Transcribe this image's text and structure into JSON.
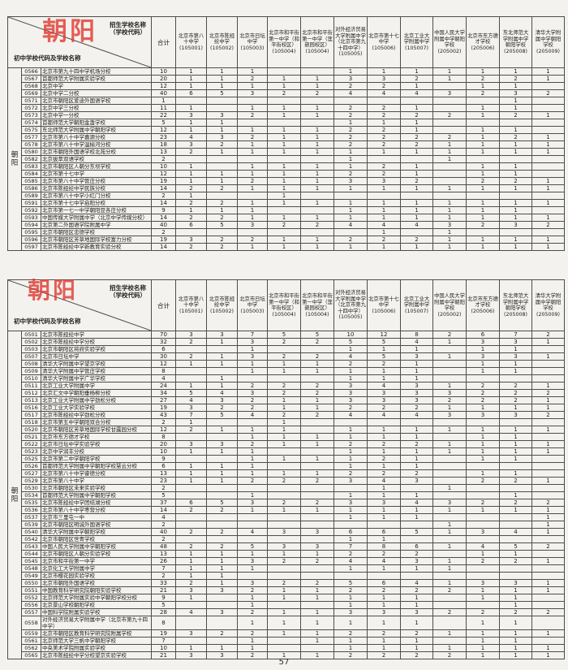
{
  "stamp_text": "朝阳",
  "side_label": "朝阳",
  "page_number": "57",
  "header": {
    "corner_top_line1": "招生学校名称",
    "corner_top_line2": "（学校代码）",
    "corner_bottom": "初中学校代码及学校名称",
    "total_label": "合计",
    "columns": [
      {
        "name": "北京市第八十中学",
        "code": "(105001)"
      },
      {
        "name": "北京市陈经纶中学",
        "code": "(105002)"
      },
      {
        "name": "北京市日坛中学",
        "code": "(105003)"
      },
      {
        "name": "北京市和平街第一中学（和平街校区）",
        "code": "(105004)"
      },
      {
        "name": "北京市和平街第一中学（莲葩园校区）",
        "code": "(105004)"
      },
      {
        "name": "对外经济贸易大学附属中学（北京市第九十四中学）",
        "code": "(105005)"
      },
      {
        "name": "北京市第十七中学",
        "code": "(105006)"
      },
      {
        "name": "北京工业大学附属中学",
        "code": "(105007)"
      },
      {
        "name": "中国人民大学附属中学朝阳学校",
        "code": "(205002)"
      },
      {
        "name": "北京市东方德才学校",
        "code": "(205006)"
      },
      {
        "name": "东北师范大学附属中学朝阳学校",
        "code": "(205008)"
      },
      {
        "name": "清华大学附属中学朝阳学校",
        "code": "(205009)"
      }
    ]
  },
  "tables": [
    {
      "rows": [
        [
          "0566",
          "北京市第九十四中学机场分校",
          "10",
          "1",
          "1",
          "1",
          "",
          "",
          "1",
          "1",
          "1",
          "1",
          "1",
          "1",
          "1"
        ],
        [
          "0567",
          "首都师范大学附属实验学校",
          "20",
          "1",
          "1",
          "2",
          "1",
          "1",
          "3",
          "3",
          "2",
          "1",
          "2",
          "2",
          "1"
        ],
        [
          "0568",
          "北京中学",
          "12",
          "1",
          "1",
          "1",
          "1",
          "1",
          "2",
          "2",
          "1",
          "",
          "1",
          "1",
          ""
        ],
        [
          "0569",
          "北京中学二分校",
          "40",
          "6",
          "5",
          "3",
          "2",
          "2",
          "4",
          "4",
          "4",
          "3",
          "2",
          "3",
          "2"
        ],
        [
          "0571",
          "北京市朝阳区爱迪外国语学校",
          "1",
          "",
          "",
          "",
          "",
          "",
          "",
          "",
          "",
          "",
          "",
          "1",
          ""
        ],
        [
          "0572",
          "北京中学三分校",
          "11",
          "1",
          "",
          "1",
          "1",
          "1",
          "2",
          "2",
          "1",
          "",
          "1",
          "1",
          ""
        ],
        [
          "0573",
          "北京中学一分校",
          "22",
          "3",
          "3",
          "2",
          "1",
          "1",
          "2",
          "2",
          "2",
          "2",
          "1",
          "2",
          "1"
        ],
        [
          "0574",
          "首都师范大学朝阳金盏学校",
          "5",
          "1",
          "1",
          "",
          "",
          "",
          "1",
          "1",
          "1",
          "",
          "",
          "",
          ""
        ],
        [
          "0575",
          "东北师范大学附属中学朝阳学校",
          "12",
          "1",
          "1",
          "1",
          "1",
          "1",
          "2",
          "2",
          "1",
          "",
          "1",
          "1",
          ""
        ],
        [
          "0577",
          "北京市第八十中学嘉源分校",
          "23",
          "4",
          "3",
          "2",
          "1",
          "1",
          "2",
          "2",
          "2",
          "2",
          "1",
          "2",
          "1"
        ],
        [
          "0578",
          "北京市第八十中学温榆河分校",
          "18",
          "3",
          "2",
          "1",
          "1",
          "1",
          "2",
          "2",
          "2",
          "1",
          "1",
          "1",
          "1"
        ],
        [
          "0580",
          "北京市朝阳外国语学校北苑分校",
          "13",
          "2",
          "1",
          "1",
          "1",
          "1",
          "1",
          "1",
          "1",
          "1",
          "1",
          "1",
          "1"
        ],
        [
          "0582",
          "北京拔萃双语学校",
          "2",
          "",
          "",
          "",
          "",
          "",
          "1",
          "",
          "",
          "1",
          "",
          "",
          ""
        ],
        [
          "0583",
          "北京市朝阳区人朝分东坝学校",
          "10",
          "1",
          "",
          "1",
          "1",
          "1",
          "1",
          "2",
          "1",
          "",
          "1",
          "1",
          ""
        ],
        [
          "0584",
          "北京市第十七中学",
          "12",
          "1",
          "1",
          "1",
          "1",
          "1",
          "2",
          "2",
          "1",
          "",
          "1",
          "1",
          ""
        ],
        [
          "0585",
          "北京市第八十中学管庄分校",
          "19",
          "1",
          "1",
          "2",
          "1",
          "1",
          "3",
          "3",
          "2",
          "",
          "2",
          "2",
          "1"
        ],
        [
          "0586",
          "北京市陈经纶中学民族分校",
          "14",
          "2",
          "2",
          "1",
          "1",
          "1",
          "1",
          "1",
          "1",
          "1",
          "1",
          "1",
          "1"
        ],
        [
          "0589",
          "北京市第八十中学小红门分校",
          "2",
          "1",
          "",
          "",
          "1",
          "",
          "",
          "",
          "",
          "",
          "",
          "",
          ""
        ],
        [
          "0591",
          "北京市第十七中学启阳分校",
          "14",
          "2",
          "2",
          "1",
          "1",
          "1",
          "1",
          "1",
          "1",
          "1",
          "1",
          "1",
          "1"
        ],
        [
          "0592",
          "北京市第一七一中学朝阳豆各庄分校",
          "9",
          "1",
          "1",
          "1",
          "",
          "",
          "1",
          "1",
          "1",
          "1",
          "1",
          "1",
          ""
        ],
        [
          "0593",
          "中国传媒大学附属中学（北京中学传媒分校）",
          "14",
          "2",
          "2",
          "1",
          "1",
          "1",
          "1",
          "1",
          "1",
          "1",
          "1",
          "1",
          "1"
        ],
        [
          "0594",
          "北京第二外国语学院附属中学",
          "40",
          "6",
          "5",
          "3",
          "2",
          "2",
          "4",
          "4",
          "4",
          "3",
          "2",
          "3",
          "2"
        ],
        [
          "0595",
          "北京市朝阳区忠德学校",
          "2",
          "",
          "",
          "",
          "",
          "",
          "",
          "1",
          "",
          "1",
          "",
          "",
          ""
        ],
        [
          "0596",
          "北京市朝阳区芳草地国际学校富力分校",
          "19",
          "3",
          "2",
          "2",
          "1",
          "1",
          "2",
          "2",
          "2",
          "1",
          "1",
          "1",
          "1"
        ],
        [
          "0597",
          "北京市陈经纶中学新教育实验分校",
          "14",
          "2",
          "2",
          "1",
          "1",
          "1",
          "1",
          "1",
          "1",
          "1",
          "1",
          "1",
          "1"
        ]
      ]
    },
    {
      "rows": [
        [
          "0501",
          "北京市陈经纶中学",
          "70",
          "3",
          "3",
          "7",
          "5",
          "5",
          "10",
          "12",
          "8",
          "2",
          "6",
          "7",
          "2"
        ],
        [
          "0502",
          "北京市陈经纶中学分校",
          "32",
          "2",
          "1",
          "3",
          "2",
          "2",
          "5",
          "5",
          "4",
          "1",
          "3",
          "3",
          "1"
        ],
        [
          "0503",
          "北京市朝阳区将府实验学校",
          "6",
          "",
          "",
          "1",
          "",
          "",
          "1",
          "1",
          "1",
          "",
          "1",
          "1",
          ""
        ],
        [
          "0507",
          "北京市日坛中学",
          "30",
          "2",
          "1",
          "3",
          "2",
          "2",
          "4",
          "5",
          "3",
          "1",
          "3",
          "3",
          "1"
        ],
        [
          "0508",
          "清华大学附属中学望京学校",
          "12",
          "1",
          "1",
          "1",
          "1",
          "1",
          "2",
          "2",
          "1",
          "",
          "1",
          "1",
          ""
        ],
        [
          "0509",
          "清华大学附属中学管庄学校",
          "8",
          "",
          "",
          "1",
          "1",
          "1",
          "1",
          "1",
          "1",
          "",
          "1",
          "1",
          ""
        ],
        [
          "0510",
          "清华大学附属中学广华学校",
          "4",
          "",
          "1",
          "",
          "",
          "",
          "1",
          "1",
          "1",
          "",
          "",
          "",
          ""
        ],
        [
          "0511",
          "北京工业大学附属中学",
          "24",
          "1",
          "1",
          "2",
          "2",
          "2",
          "3",
          "4",
          "3",
          "1",
          "2",
          "2",
          "1"
        ],
        [
          "0512",
          "北京汇文中学朝阳垂杨柳分校",
          "34",
          "5",
          "4",
          "3",
          "2",
          "2",
          "3",
          "3",
          "3",
          "3",
          "2",
          "2",
          "2"
        ],
        [
          "0513",
          "北京工业大学附属中学劲松分校",
          "27",
          "4",
          "3",
          "2",
          "1",
          "1",
          "3",
          "3",
          "3",
          "2",
          "2",
          "2",
          "1"
        ],
        [
          "0516",
          "北京工业大学实验学校",
          "19",
          "3",
          "2",
          "2",
          "1",
          "1",
          "2",
          "2",
          "2",
          "1",
          "1",
          "1",
          "1"
        ],
        [
          "0517",
          "北京市陈经纶中学劲松分校",
          "43",
          "7",
          "5",
          "4",
          "2",
          "2",
          "4",
          "4",
          "4",
          "3",
          "3",
          "3",
          "2"
        ],
        [
          "0518",
          "北京市第五中学朝阳双合分校",
          "2",
          "1",
          "",
          "",
          "1",
          "",
          "",
          "",
          "",
          "",
          "",
          "",
          ""
        ],
        [
          "0520",
          "北京市朝阳区芳草地国际学校甘露园分校",
          "12",
          "2",
          "1",
          "1",
          "1",
          "",
          "1",
          "1",
          "1",
          "1",
          "1",
          "1",
          "1"
        ],
        [
          "0521",
          "北京市东方德才学校",
          "8",
          "",
          "",
          "1",
          "1",
          "1",
          "1",
          "1",
          "1",
          "",
          "1",
          "1",
          ""
        ],
        [
          "0522",
          "北京市日坛中学实验学校",
          "20",
          "3",
          "3",
          "2",
          "1",
          "1",
          "2",
          "2",
          "2",
          "1",
          "1",
          "1",
          "1"
        ],
        [
          "0523",
          "北京中学润丰分校",
          "10",
          "1",
          "1",
          "1",
          "",
          "",
          "1",
          "1",
          "1",
          "1",
          "1",
          "1",
          "1"
        ],
        [
          "0525",
          "北京市第二中学朝阳学校",
          "9",
          "",
          "",
          "1",
          "1",
          "1",
          "1",
          "2",
          "1",
          "",
          "1",
          "1",
          ""
        ],
        [
          "0526",
          "首都师范大学附属中学朝阳学校慧云分校",
          "6",
          "1",
          "1",
          "1",
          "",
          "",
          "1",
          "1",
          "1",
          "",
          "",
          "",
          ""
        ],
        [
          "0527",
          "北京市第八十中学睿德分校",
          "13",
          "1",
          "1",
          "1",
          "1",
          "1",
          "2",
          "2",
          "2",
          "",
          "1",
          "1",
          ""
        ],
        [
          "0529",
          "北京市第八十中学",
          "23",
          "1",
          "1",
          "2",
          "2",
          "2",
          "3",
          "4",
          "3",
          "",
          "2",
          "2",
          "1"
        ],
        [
          "0530",
          "北京市朝阳区未来实验学校",
          "2",
          "",
          "",
          "",
          "",
          "",
          "",
          "1",
          "",
          "1",
          "",
          "",
          ""
        ],
        [
          "0534",
          "首都师范大学附属中学朝阳学校",
          "5",
          "",
          "",
          "1",
          "",
          "",
          "1",
          "1",
          "1",
          "",
          "",
          "1",
          ""
        ],
        [
          "0535",
          "北京市陈经纶中学团结湖分校",
          "37",
          "6",
          "5",
          "3",
          "2",
          "2",
          "3",
          "3",
          "4",
          "3",
          "2",
          "2",
          "2"
        ],
        [
          "0536",
          "北京市第八十中学枣营分校",
          "14",
          "2",
          "2",
          "1",
          "1",
          "1",
          "1",
          "1",
          "1",
          "1",
          "1",
          "1",
          "1"
        ],
        [
          "0537",
          "北京市三里屯一中",
          "4",
          "",
          "",
          "",
          "",
          "",
          "1",
          "1",
          "1",
          "",
          "",
          "",
          "1"
        ],
        [
          "0539",
          "北京市朝阳区明诚外国语学校",
          "2",
          "",
          "",
          "",
          "",
          "",
          "",
          "",
          "",
          "1",
          "",
          "",
          "1"
        ],
        [
          "0540",
          "清华大学附属中学朝阳学校",
          "40",
          "2",
          "2",
          "4",
          "3",
          "3",
          "6",
          "6",
          "5",
          "1",
          "3",
          "4",
          "1"
        ],
        [
          "0542",
          "北京市朝阳区世青学校",
          "2",
          "",
          "",
          "",
          "",
          "",
          "1",
          "1",
          "",
          "",
          "",
          "",
          ""
        ],
        [
          "0543",
          "中国人民大学附属中学朝阳学校",
          "48",
          "2",
          "2",
          "5",
          "3",
          "3",
          "7",
          "8",
          "6",
          "1",
          "4",
          "5",
          "2"
        ],
        [
          "0544",
          "北京市朝阳区人朝分实验学校",
          "13",
          "1",
          "1",
          "1",
          "1",
          "1",
          "2",
          "2",
          "2",
          "",
          "1",
          "1",
          ""
        ],
        [
          "0545",
          "北京市和平街第一中学",
          "26",
          "1",
          "1",
          "3",
          "2",
          "2",
          "4",
          "4",
          "3",
          "1",
          "2",
          "2",
          "1"
        ],
        [
          "0548",
          "北京化工大学附属中学",
          "7",
          "1",
          "1",
          "1",
          "",
          "",
          "1",
          "1",
          "1",
          "1",
          "",
          "",
          ""
        ],
        [
          "0549",
          "北京市樱花园实验学校",
          "2",
          "1",
          "1",
          "",
          "",
          "",
          "",
          "",
          "",
          "",
          "",
          "",
          ""
        ],
        [
          "0550",
          "北京市朝阳外国语学校",
          "33",
          "2",
          "1",
          "3",
          "2",
          "2",
          "5",
          "6",
          "4",
          "1",
          "3",
          "3",
          "1"
        ],
        [
          "0551",
          "中国教育科学研究院朝阳实验学校",
          "21",
          "3",
          "3",
          "2",
          "1",
          "1",
          "2",
          "2",
          "2",
          "2",
          "1",
          "1",
          "1"
        ],
        [
          "0552",
          "北京师范大学附属实验中学朝阳学校分校",
          "9",
          "1",
          "",
          "1",
          "1",
          "1",
          "1",
          "1",
          "1",
          "",
          "1",
          "1",
          ""
        ],
        [
          "0556",
          "北京景山学校朝阳学校",
          "5",
          "",
          "",
          "1",
          "",
          "",
          "1",
          "1",
          "1",
          "",
          "",
          "1",
          ""
        ],
        [
          "0557",
          "中国科学院附属实验学校",
          "28",
          "4",
          "3",
          "2",
          "1",
          "1",
          "3",
          "3",
          "3",
          "2",
          "2",
          "2",
          "2"
        ],
        [
          "0558",
          "对外经济贸易大学附属中学（北京市第九十四中学）",
          "8",
          "",
          "",
          "1",
          "1",
          "1",
          "1",
          "1",
          "1",
          "",
          "1",
          "1",
          ""
        ],
        [
          "0559",
          "北京市朝阳区教育科学研究院附属学校",
          "19",
          "3",
          "2",
          "2",
          "1",
          "1",
          "2",
          "2",
          "2",
          "1",
          "1",
          "1",
          "1"
        ],
        [
          "0561",
          "北京师范大学三帆中学朝阳学校",
          "7",
          "",
          "",
          "1",
          "",
          "1",
          "1",
          "1",
          "1",
          "",
          "1",
          "1",
          ""
        ],
        [
          "0562",
          "中央美术学院附属实验学校",
          "10",
          "1",
          "1",
          "1",
          "",
          "",
          "1",
          "1",
          "1",
          "1",
          "1",
          "1",
          "1"
        ],
        [
          "0565",
          "北京市陈经纶中学分校望京实验学校",
          "21",
          "3",
          "3",
          "2",
          "1",
          "1",
          "2",
          "2",
          "2",
          "2",
          "1",
          "1",
          "1"
        ]
      ]
    }
  ]
}
